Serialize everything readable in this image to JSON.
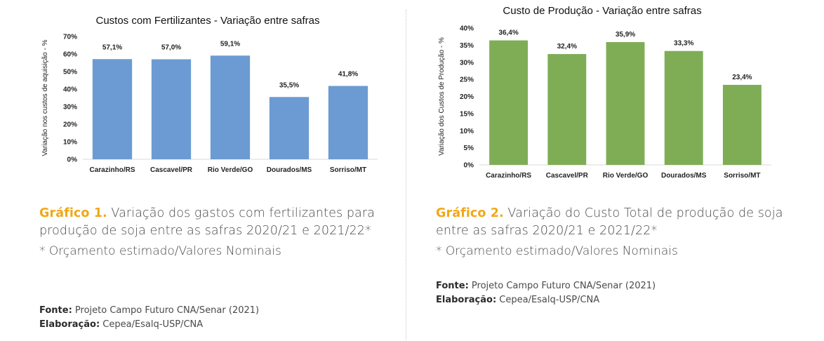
{
  "chart_data": [
    {
      "type": "bar",
      "title": "Custos com Fertilizantes - Variação entre safras",
      "xlabel": "",
      "ylabel": "Variação nos custos de aquisição - %",
      "categories": [
        "Carazinho/RS",
        "Cascavel/PR",
        "Rio Verde/GO",
        "Dourados/MS",
        "Sorriso/MT"
      ],
      "values": [
        57.1,
        57.0,
        59.1,
        35.5,
        41.8
      ],
      "value_labels": [
        "57,1%",
        "57,0%",
        "59,1%",
        "35,5%",
        "41,8%"
      ],
      "ylim": [
        0,
        70
      ],
      "yticks": [
        0,
        10,
        20,
        30,
        40,
        50,
        60,
        70
      ],
      "ytick_labels": [
        "0%",
        "10%",
        "20%",
        "30%",
        "40%",
        "50%",
        "60%",
        "70%"
      ],
      "grid": false,
      "color": "#6b9bd2"
    },
    {
      "type": "bar",
      "title": "Custo de Produção - Variação entre safras",
      "xlabel": "",
      "ylabel": "Variação dos Custos de Produção - %",
      "categories": [
        "Carazinho/RS",
        "Cascavel/PR",
        "Rio Verde/GO",
        "Dourados/MS",
        "Sorriso/MT"
      ],
      "values": [
        36.4,
        32.4,
        35.9,
        33.3,
        23.4
      ],
      "value_labels": [
        "36,4%",
        "32,4%",
        "35,9%",
        "33,3%",
        "23,4%"
      ],
      "ylim": [
        0,
        40
      ],
      "yticks": [
        0,
        5,
        10,
        15,
        20,
        25,
        30,
        35,
        40
      ],
      "ytick_labels": [
        "0%",
        "5%",
        "10%",
        "15%",
        "20%",
        "25%",
        "30%",
        "35%",
        "40%"
      ],
      "grid": false,
      "color": "#7fad56"
    }
  ],
  "captions": {
    "left": {
      "label": "Gráfico 1.",
      "text": " Variação dos gastos com fertilizantes para produção de soja entre as safras 2020/21 e 2021/22*",
      "note": "* Orçamento estimado/Valores Nominais",
      "source_label": "Fonte:",
      "source": " Projeto Campo Futuro CNA/Senar (2021)",
      "elab_label": "Elaboração:",
      "elab": " Cepea/Esalq-USP/CNA"
    },
    "right": {
      "label": "Gráfico 2.",
      "text": " Variação do Custo Total de produção de soja entre as safras 2020/21 e 2021/22*",
      "note": "* Orçamento estimado/Valores Nominais",
      "source_label": "Fonte:",
      "source": " Projeto Campo Futuro CNA/Senar (2021)",
      "elab_label": "Elaboração:",
      "elab": " Cepea/Esalq-USP/CNA"
    }
  }
}
